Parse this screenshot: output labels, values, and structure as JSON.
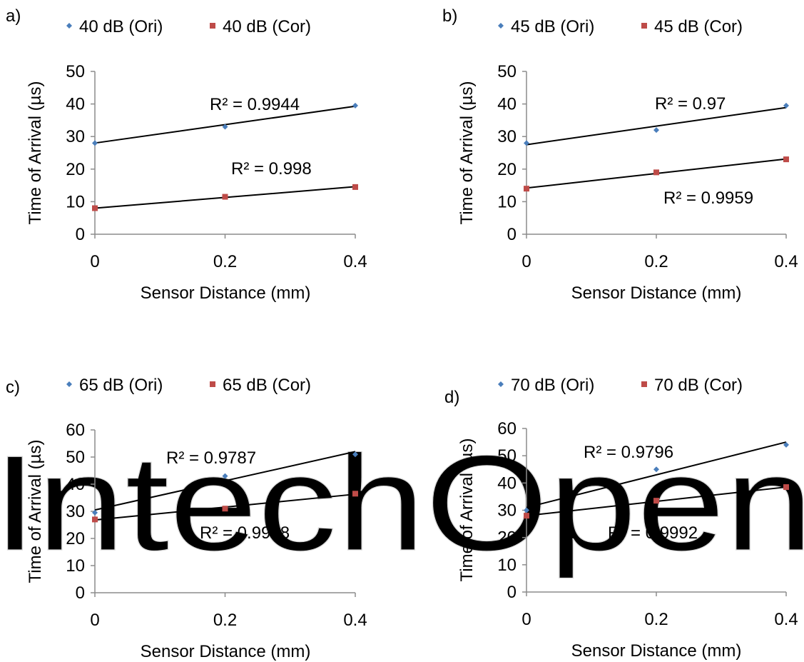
{
  "watermark": "IntechOpen",
  "colors": {
    "ori": "#4a7ebb",
    "cor": "#be4b48",
    "axis": "#8c8c8c",
    "line": "#000000"
  },
  "chart_data": [
    {
      "panel": "a)",
      "type": "scatter",
      "xlabel": "Sensor Distance (mm)",
      "ylabel": "Time of Arrival (µs)",
      "xlim": [
        0,
        0.4
      ],
      "ylim": [
        0,
        50
      ],
      "xticks": [
        "0",
        "0.2",
        "0.4"
      ],
      "yticks": [
        "0",
        "10",
        "20",
        "30",
        "40",
        "50"
      ],
      "grid": false,
      "legend_position": "top",
      "series": [
        {
          "name": "40 dB (Ori)",
          "marker": "diamond",
          "x": [
            0,
            0.2,
            0.4
          ],
          "y": [
            28,
            33,
            39.5
          ],
          "trendline": {
            "intercept": 28.0,
            "end": 39.3
          },
          "r2": "R² = 0.9944"
        },
        {
          "name": "40 dB (Cor)",
          "marker": "square",
          "x": [
            0,
            0.2,
            0.4
          ],
          "y": [
            8,
            11.5,
            14.5
          ],
          "trendline": {
            "intercept": 8.0,
            "end": 14.6
          },
          "r2": "R² = 0.998"
        }
      ]
    },
    {
      "panel": "b)",
      "type": "scatter",
      "xlabel": "Sensor Distance (mm)",
      "ylabel": "Time of Arrival (µs)",
      "xlim": [
        0,
        0.4
      ],
      "ylim": [
        0,
        50
      ],
      "xticks": [
        "0",
        "0.2",
        "0.4"
      ],
      "yticks": [
        "0",
        "10",
        "20",
        "30",
        "40",
        "50"
      ],
      "grid": false,
      "legend_position": "top",
      "series": [
        {
          "name": "45 dB (Ori)",
          "marker": "diamond",
          "x": [
            0,
            0.2,
            0.4
          ],
          "y": [
            28,
            32,
            39.5
          ],
          "trendline": {
            "intercept": 27.5,
            "end": 38.9
          },
          "r2": "R² = 0.97"
        },
        {
          "name": "45 dB (Cor)",
          "marker": "square",
          "x": [
            0,
            0.2,
            0.4
          ],
          "y": [
            14,
            19,
            23
          ],
          "trendline": {
            "intercept": 14.2,
            "end": 23.1
          },
          "r2": "R² = 0.9959"
        }
      ]
    },
    {
      "panel": "c)",
      "type": "scatter",
      "xlabel": "Sensor Distance (mm)",
      "ylabel": "Time of Arrival (µs)",
      "xlim": [
        0,
        0.4
      ],
      "ylim": [
        0,
        60
      ],
      "xticks": [
        "0",
        "0.2",
        "0.4"
      ],
      "yticks": [
        "0",
        "10",
        "20",
        "30",
        "40",
        "50",
        "60"
      ],
      "grid": false,
      "legend_position": "top",
      "series": [
        {
          "name": "65 dB (Ori)",
          "marker": "diamond",
          "x": [
            0,
            0.2,
            0.4
          ],
          "y": [
            29.5,
            43,
            51
          ],
          "trendline": {
            "intercept": 30.5,
            "end": 52.0
          },
          "r2": "R² = 0.9787"
        },
        {
          "name": "65 dB (Cor)",
          "marker": "square",
          "x": [
            0,
            0.2,
            0.4
          ],
          "y": [
            27,
            31,
            36.5
          ],
          "trendline": {
            "intercept": 26.8,
            "end": 36.3
          },
          "r2": "R² = 0.9918"
        }
      ]
    },
    {
      "panel": "d)",
      "type": "scatter",
      "xlabel": "Sensor Distance (mm)",
      "ylabel": "Time of Arrival (µs)",
      "xlim": [
        0,
        0.4
      ],
      "ylim": [
        0,
        60
      ],
      "xticks": [
        "0",
        "0.2",
        "0.4"
      ],
      "yticks": [
        "0",
        "10",
        "20",
        "30",
        "40",
        "50",
        "60"
      ],
      "grid": false,
      "legend_position": "top",
      "series": [
        {
          "name": "70 dB (Ori)",
          "marker": "diamond",
          "x": [
            0,
            0.2,
            0.4
          ],
          "y": [
            30,
            45,
            54
          ],
          "trendline": {
            "intercept": 31.0,
            "end": 55.0
          },
          "r2": "R² = 0.9796"
        },
        {
          "name": "70 dB (Cor)",
          "marker": "square",
          "x": [
            0,
            0.2,
            0.4
          ],
          "y": [
            28,
            33.5,
            38.5
          ],
          "trendline": {
            "intercept": 28.0,
            "end": 38.5
          },
          "r2": "R² = 0.9992"
        }
      ]
    }
  ]
}
